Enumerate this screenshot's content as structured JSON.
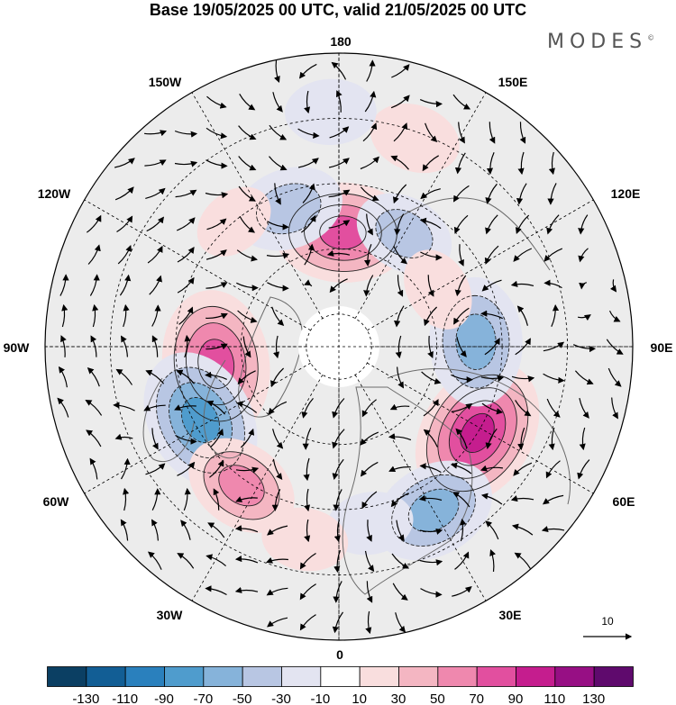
{
  "title": "Base 19/05/2025 00 UTC, valid 21/05/2025 00 UTC",
  "brand": {
    "text": "MODES",
    "mark": "©"
  },
  "longitude_labels": {
    "lon_180": "180",
    "lon_150e": "150E",
    "lon_120e": "120E",
    "lon_90e": "90E",
    "lon_60e": "60E",
    "lon_30e": "30E",
    "lon_0": "0",
    "lon_30w": "30W",
    "lon_60w": "60W",
    "lon_90w": "90W",
    "lon_120w": "120W",
    "lon_150w": "150W"
  },
  "vector_scale": {
    "label": "10"
  },
  "colorbar": {
    "colors": [
      "#0b3f63",
      "#125e95",
      "#2a80bd",
      "#4f9ccd",
      "#86b3da",
      "#b8c6e3",
      "#e3e4f1",
      "#ffffff",
      "#f9dede",
      "#f4b6c2",
      "#ef88ae",
      "#e24f9f",
      "#c51d8e",
      "#970f84",
      "#5f0a6d"
    ],
    "tick_labels": [
      "-130",
      "-110",
      "-90",
      "-70",
      "-50",
      "-30",
      "-10",
      "10",
      "30",
      "50",
      "70",
      "90",
      "110",
      "130"
    ]
  },
  "anomaly_blobs": [
    {
      "lon": -82,
      "lat": 52,
      "value": 95
    },
    {
      "lon": -62,
      "lat": 42,
      "value": -90
    },
    {
      "lon": -35,
      "lat": 38,
      "value": 60
    },
    {
      "lon": 58,
      "lat": 40,
      "value": 100
    },
    {
      "lon": 92,
      "lat": 48,
      "value": -75
    },
    {
      "lon": 30,
      "lat": 32,
      "value": -70
    },
    {
      "lon": 178,
      "lat": 55,
      "value": 85
    },
    {
      "lon": 150,
      "lat": 50,
      "value": -45
    },
    {
      "lon": 160,
      "lat": 22,
      "value": 35
    },
    {
      "lon": -160,
      "lat": 45,
      "value": -55
    },
    {
      "lon": -140,
      "lat": 40,
      "value": 25
    },
    {
      "lon": -178,
      "lat": 18,
      "value": -35
    },
    {
      "lon": 120,
      "lat": 55,
      "value": 28
    },
    {
      "lon": 10,
      "lat": 35,
      "value": -30
    },
    {
      "lon": -10,
      "lat": 30,
      "value": 30
    }
  ]
}
